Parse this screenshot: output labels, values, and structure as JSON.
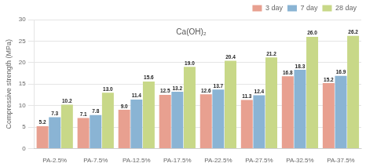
{
  "chart_data": {
    "type": "bar",
    "categories": [
      "PA-2.5%",
      "PA-7.5%",
      "PA-12.5%",
      "PA-17.5%",
      "PA-22.5%",
      "PA-27.5%",
      "PA-32.5%",
      "PA-37.5%"
    ],
    "series": [
      {
        "name": "3 day",
        "color": "#e8a090",
        "values": [
          5.2,
          7.1,
          9.0,
          12.5,
          12.6,
          11.3,
          16.8,
          15.2
        ],
        "value_labels": [
          "5.2",
          "7.1",
          "9.0",
          "12.5",
          "12.6",
          "11.3",
          "16.8",
          "15.2"
        ]
      },
      {
        "name": "7 day",
        "color": "#8ab4d4",
        "values": [
          7.3,
          7.8,
          11.4,
          13.2,
          13.7,
          12.4,
          18.3,
          16.9
        ],
        "value_labels": [
          "7.3",
          "7.8",
          "11.4",
          "13.2",
          "13.7",
          "12.4",
          "18.3",
          "16.9"
        ]
      },
      {
        "name": "28 day",
        "color": "#c8d888",
        "values": [
          10.2,
          13.0,
          15.6,
          19.0,
          20.4,
          21.2,
          26.0,
          26.2
        ],
        "value_labels": [
          "10.2",
          "13.0",
          "15.6",
          "19.0",
          "20.4",
          "21.2",
          "26.0",
          "26.2"
        ]
      }
    ],
    "ylabel": "Compressive strength (MPa)",
    "annotation": "Ca(OH)₂",
    "ylim": [
      0,
      30
    ],
    "yticks": [
      0,
      5,
      10,
      15,
      20,
      25,
      30
    ],
    "grid": true,
    "legend": "top right",
    "data_labels": true
  }
}
